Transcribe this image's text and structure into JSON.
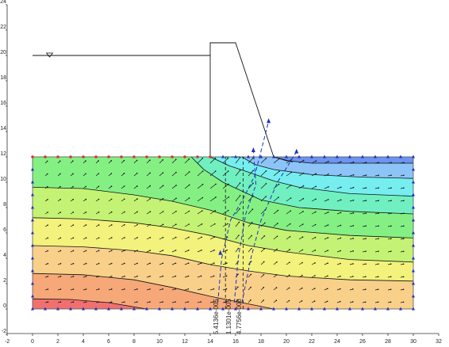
{
  "chart_data": {
    "type": "contour",
    "xlim": [
      -2,
      32
    ],
    "ylim": [
      -2,
      24
    ],
    "xticks": [
      -2,
      0,
      2,
      4,
      6,
      8,
      10,
      12,
      14,
      16,
      18,
      20,
      22,
      24,
      26,
      28,
      30,
      32
    ],
    "yticks": [
      -2,
      0,
      2,
      4,
      6,
      8,
      10,
      12,
      14,
      16,
      18,
      20,
      22,
      24
    ],
    "flux_labels": [
      "5.4136e-005",
      "1.1301e-005",
      "4.7756e-006"
    ],
    "flux_color": "#3040d0"
  }
}
